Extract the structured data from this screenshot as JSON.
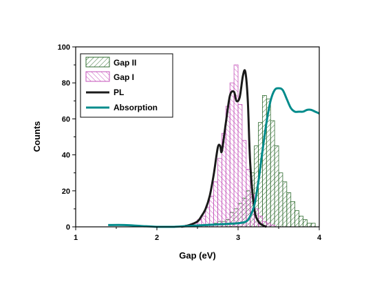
{
  "chart_data": {
    "type": "bar",
    "xlabel": "Gap (eV)",
    "ylabel": "Counts",
    "xlim": [
      1,
      4
    ],
    "ylim": [
      0,
      100
    ],
    "x_ticks": [
      "1",
      "2",
      "3",
      "4"
    ],
    "y_ticks": [
      "0",
      "20",
      "40",
      "60",
      "80",
      "100"
    ],
    "grid": false,
    "legend_position": "top-left",
    "bin_width": 0.05,
    "series": [
      {
        "name": "Gap II",
        "kind": "histogram",
        "color": "#2f6b2f",
        "fill": "diagonal-hatch",
        "x": [
          2.6,
          2.65,
          2.7,
          2.75,
          2.8,
          2.85,
          2.9,
          2.95,
          3.0,
          3.05,
          3.1,
          3.15,
          3.2,
          3.25,
          3.3,
          3.35,
          3.4,
          3.45,
          3.5,
          3.55,
          3.6,
          3.65,
          3.7,
          3.75,
          3.8,
          3.85,
          3.9
        ],
        "values": [
          1,
          1,
          2,
          3,
          3,
          4,
          8,
          10,
          13,
          16,
          20,
          30,
          45,
          58,
          73,
          71,
          59,
          45,
          30,
          25,
          19,
          14,
          9,
          6,
          4,
          2,
          2
        ]
      },
      {
        "name": "Gap I",
        "kind": "histogram",
        "color": "#c34fb8",
        "fill": "diagonal-hatch",
        "x": [
          2.35,
          2.4,
          2.45,
          2.5,
          2.55,
          2.6,
          2.65,
          2.7,
          2.75,
          2.8,
          2.85,
          2.9,
          2.95,
          3.0,
          3.05,
          3.1,
          3.15,
          3.2,
          3.25,
          3.3,
          3.35,
          3.4
        ],
        "values": [
          1,
          1,
          2,
          4,
          6,
          11,
          17,
          25,
          38,
          52,
          67,
          80,
          90,
          68,
          48,
          32,
          18,
          10,
          6,
          3,
          2,
          1
        ]
      },
      {
        "name": "PL",
        "kind": "line",
        "color": "#1a1a1a",
        "x": [
          2.3,
          2.4,
          2.5,
          2.55,
          2.6,
          2.65,
          2.7,
          2.75,
          2.78,
          2.8,
          2.85,
          2.9,
          2.95,
          2.98,
          3.02,
          3.06,
          3.09,
          3.12,
          3.15,
          3.2,
          3.25,
          3.3,
          3.35
        ],
        "values": [
          0,
          1,
          3,
          6,
          10,
          17,
          29,
          44,
          45,
          42,
          58,
          73,
          75,
          70,
          72,
          84,
          86,
          70,
          35,
          10,
          3,
          1,
          0
        ]
      },
      {
        "name": "Absorption",
        "kind": "line",
        "color": "#008b8b",
        "x": [
          1.4,
          1.6,
          1.8,
          2.0,
          2.2,
          2.4,
          2.6,
          2.8,
          3.0,
          3.1,
          3.15,
          3.2,
          3.25,
          3.3,
          3.35,
          3.4,
          3.45,
          3.5,
          3.55,
          3.6,
          3.65,
          3.7,
          3.75,
          3.8,
          3.85,
          3.9,
          3.95,
          4.0
        ],
        "values": [
          1,
          1,
          0.5,
          0,
          0,
          0.5,
          1,
          1.5,
          2,
          3,
          6,
          12,
          25,
          42,
          58,
          70,
          76,
          77,
          76,
          71,
          66,
          64,
          64,
          64,
          65,
          65,
          64,
          63
        ]
      }
    ]
  }
}
